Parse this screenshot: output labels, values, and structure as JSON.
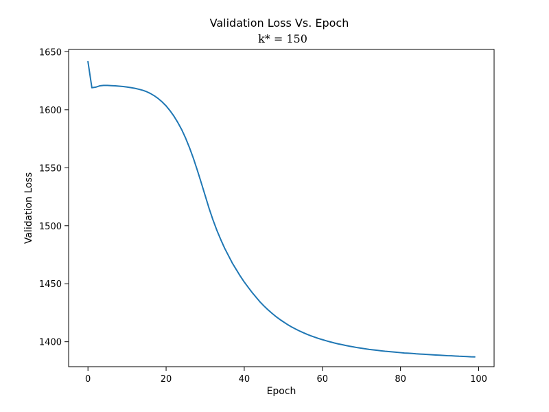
{
  "chart_data": {
    "type": "line",
    "title": "Validation Loss Vs. Epoch",
    "subtitle": "k* = 150",
    "xlabel": "Epoch",
    "ylabel": "Validation Loss",
    "xlim": [
      -4.95,
      103.95
    ],
    "ylim": [
      1378.5,
      1652.0
    ],
    "x_ticks": [
      0,
      20,
      40,
      60,
      80,
      100
    ],
    "y_ticks": [
      1400,
      1450,
      1500,
      1550,
      1600,
      1650
    ],
    "grid": false,
    "line_color": "#1f77b4",
    "series": [
      {
        "x": [
          0,
          1,
          2,
          3,
          4,
          5,
          6,
          7,
          8,
          9,
          10,
          11,
          12,
          13,
          14,
          15,
          16,
          17,
          18,
          19,
          20,
          21,
          22,
          23,
          24,
          25,
          26,
          27,
          28,
          29,
          30,
          31,
          32,
          33,
          34,
          35,
          36,
          37,
          38,
          39,
          40,
          41,
          42,
          43,
          44,
          45,
          46,
          47,
          48,
          49,
          50,
          51,
          52,
          53,
          54,
          55,
          56,
          57,
          58,
          59,
          60,
          61,
          62,
          63,
          64,
          65,
          66,
          67,
          68,
          69,
          70,
          71,
          72,
          73,
          74,
          75,
          76,
          77,
          78,
          79,
          80,
          81,
          82,
          83,
          84,
          85,
          86,
          87,
          88,
          89,
          90,
          91,
          92,
          93,
          94,
          95,
          96,
          97,
          98,
          99
        ],
        "values": [
          1641.5,
          1619.0,
          1619.5,
          1620.6,
          1621.0,
          1621.0,
          1620.8,
          1620.6,
          1620.3,
          1620.0,
          1619.6,
          1619.1,
          1618.5,
          1617.7,
          1616.8,
          1615.6,
          1614.0,
          1612.0,
          1609.6,
          1606.7,
          1603.3,
          1599.2,
          1594.5,
          1589.0,
          1582.8,
          1575.5,
          1567.2,
          1558.0,
          1547.8,
          1537.0,
          1526.0,
          1515.0,
          1505.0,
          1496.0,
          1488.0,
          1480.5,
          1474.0,
          1467.5,
          1462.0,
          1456.5,
          1451.5,
          1447.0,
          1442.5,
          1438.5,
          1434.5,
          1431.0,
          1427.8,
          1424.8,
          1422.0,
          1419.5,
          1417.2,
          1415.0,
          1413.0,
          1411.2,
          1409.5,
          1408.0,
          1406.5,
          1405.2,
          1404.0,
          1402.8,
          1401.8,
          1400.8,
          1399.9,
          1399.0,
          1398.2,
          1397.5,
          1396.8,
          1396.1,
          1395.5,
          1394.9,
          1394.4,
          1393.9,
          1393.4,
          1393.0,
          1392.6,
          1392.2,
          1391.8,
          1391.5,
          1391.2,
          1390.9,
          1390.6,
          1390.3,
          1390.1,
          1389.9,
          1389.6,
          1389.4,
          1389.2,
          1389.0,
          1388.8,
          1388.6,
          1388.4,
          1388.2,
          1388.0,
          1387.9,
          1387.7,
          1387.5,
          1387.4,
          1387.2,
          1387.0,
          1386.9
        ]
      }
    ]
  }
}
